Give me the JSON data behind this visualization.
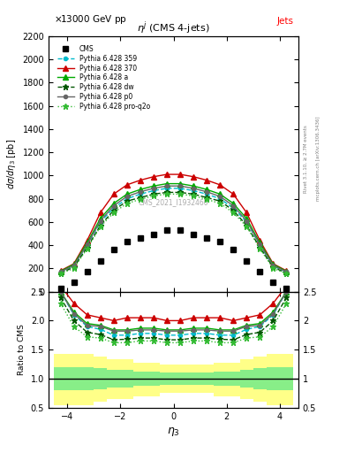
{
  "eta_bins": [
    -4.5,
    -4.0,
    -3.5,
    -3.0,
    -2.5,
    -2.0,
    -1.5,
    -1.0,
    -0.5,
    0.0,
    0.5,
    1.0,
    1.5,
    2.0,
    2.5,
    3.0,
    3.5,
    4.0,
    4.5
  ],
  "cms_data": [
    30,
    80,
    170,
    260,
    360,
    430,
    460,
    490,
    530,
    530,
    490,
    460,
    430,
    360,
    260,
    170,
    80,
    30
  ],
  "py359_data": [
    170,
    220,
    400,
    600,
    720,
    800,
    840,
    870,
    890,
    890,
    870,
    840,
    800,
    720,
    600,
    400,
    220,
    170
  ],
  "py370_data": [
    180,
    240,
    440,
    680,
    840,
    920,
    960,
    990,
    1010,
    1010,
    990,
    960,
    920,
    840,
    680,
    440,
    240,
    180
  ],
  "pya_data": [
    175,
    235,
    420,
    630,
    760,
    840,
    880,
    910,
    930,
    930,
    910,
    880,
    840,
    760,
    630,
    420,
    235,
    175
  ],
  "pydw_data": [
    160,
    210,
    380,
    570,
    700,
    780,
    810,
    840,
    855,
    855,
    840,
    810,
    780,
    700,
    570,
    380,
    210,
    160
  ],
  "pyp0_data": [
    170,
    225,
    405,
    610,
    740,
    820,
    860,
    890,
    910,
    910,
    890,
    860,
    820,
    740,
    610,
    405,
    225,
    170
  ],
  "pyproq2o_data": [
    155,
    200,
    370,
    560,
    680,
    760,
    795,
    825,
    840,
    840,
    825,
    795,
    760,
    680,
    560,
    370,
    200,
    155
  ],
  "ratio_py359": [
    2.5,
    2.1,
    1.9,
    1.85,
    1.75,
    1.75,
    1.78,
    1.78,
    1.75,
    1.75,
    1.78,
    1.78,
    1.75,
    1.75,
    1.85,
    1.9,
    2.1,
    2.5
  ],
  "ratio_py370": [
    2.6,
    2.3,
    2.1,
    2.05,
    2.0,
    2.05,
    2.05,
    2.05,
    2.0,
    2.0,
    2.05,
    2.05,
    2.05,
    2.0,
    2.05,
    2.1,
    2.3,
    2.6
  ],
  "ratio_pya": [
    2.5,
    2.15,
    1.95,
    1.92,
    1.84,
    1.84,
    1.87,
    1.87,
    1.84,
    1.84,
    1.87,
    1.87,
    1.84,
    1.84,
    1.92,
    1.95,
    2.15,
    2.5
  ],
  "ratio_pydw": [
    2.4,
    2.0,
    1.8,
    1.76,
    1.67,
    1.68,
    1.7,
    1.7,
    1.67,
    1.67,
    1.7,
    1.7,
    1.68,
    1.67,
    1.76,
    1.8,
    2.0,
    2.4
  ],
  "ratio_pyp0": [
    2.5,
    2.12,
    1.92,
    1.9,
    1.82,
    1.82,
    1.84,
    1.84,
    1.82,
    1.82,
    1.84,
    1.84,
    1.82,
    1.82,
    1.9,
    1.92,
    2.12,
    2.5
  ],
  "ratio_pyproq2o": [
    2.3,
    1.9,
    1.72,
    1.7,
    1.62,
    1.62,
    1.65,
    1.65,
    1.62,
    1.62,
    1.65,
    1.65,
    1.62,
    1.62,
    1.7,
    1.72,
    1.9,
    2.3
  ],
  "band_edges": [
    -4.5,
    -3.5,
    -3.0,
    -2.5,
    -1.5,
    -0.5,
    0.5,
    1.5,
    2.5,
    3.0,
    3.5,
    4.5
  ],
  "band_green_low": [
    0.8,
    0.8,
    0.82,
    0.85,
    0.88,
    0.9,
    0.9,
    0.88,
    0.85,
    0.82,
    0.8,
    0.8
  ],
  "band_green_high": [
    1.2,
    1.2,
    1.18,
    1.15,
    1.12,
    1.1,
    1.1,
    1.12,
    1.15,
    1.18,
    1.2,
    1.2
  ],
  "band_yellow_low": [
    0.55,
    0.55,
    0.6,
    0.65,
    0.7,
    0.75,
    0.75,
    0.7,
    0.65,
    0.6,
    0.55,
    0.55
  ],
  "band_yellow_high": [
    1.42,
    1.42,
    1.38,
    1.33,
    1.28,
    1.25,
    1.25,
    1.28,
    1.33,
    1.38,
    1.42,
    1.42
  ],
  "ylim_main": [
    0,
    2200
  ],
  "ylim_ratio": [
    0.5,
    2.5
  ],
  "xlim": [
    -4.7,
    4.7
  ],
  "color_359": "#00BBCC",
  "color_370": "#CC0000",
  "color_a": "#00AA00",
  "color_dw": "#005500",
  "color_p0": "#666666",
  "color_proq2o": "#33BB33"
}
